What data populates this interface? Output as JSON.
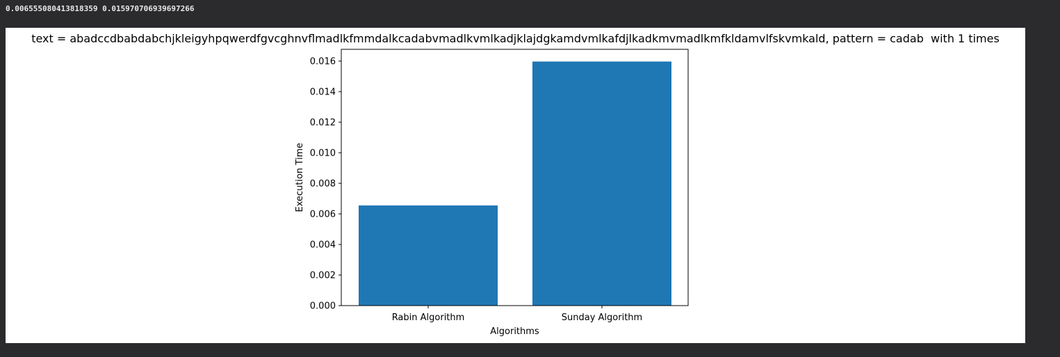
{
  "output": {
    "stdout_line": "0.006555080413818359 0.015970706939697266"
  },
  "chart_data": {
    "type": "bar",
    "title": "text = abadccdbabdabchjkleigyhpqwerdfgvcghnvflmadlkfmmdalkcadabvmadlkvmlkadjklajdgkamdvmlkafdjlkadkmvmadlkmfkldamvlfskvmkald, pattern = cadab  with 1 times",
    "xlabel": "Algorithms",
    "ylabel": "Execution Time",
    "categories": [
      "Rabin Algorithm",
      "Sunday Algorithm"
    ],
    "values": [
      0.006555080413818359,
      0.015970706939697266
    ],
    "ylim": [
      0,
      0.01677
    ],
    "yticks": [
      "0.000",
      "0.002",
      "0.004",
      "0.006",
      "0.008",
      "0.010",
      "0.012",
      "0.014",
      "0.016"
    ],
    "bar_color": "#1f77b4",
    "grid": false
  }
}
